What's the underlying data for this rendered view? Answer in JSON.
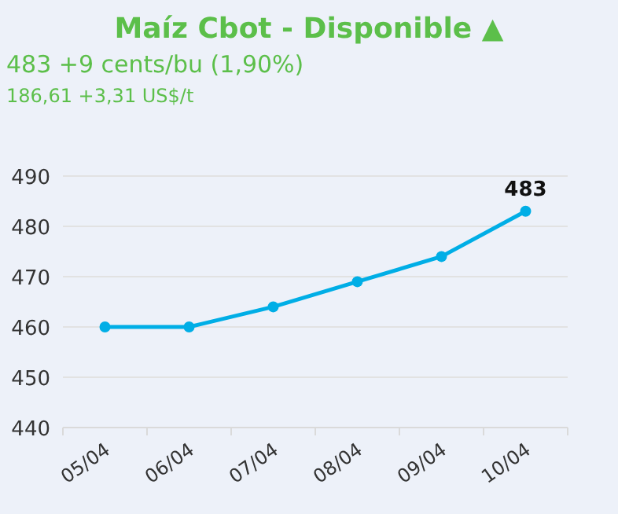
{
  "chart_data": {
    "type": "line",
    "title": "Maíz Cbot - Disponible ▲",
    "subtitle": "483 +9 cents/bu (1,90%)",
    "annotations": [
      "186,61 +3,31 US$/t",
      {
        "text": "483",
        "x": "10/04",
        "y": 483
      }
    ],
    "categories": [
      "05/04",
      "06/04",
      "07/04",
      "08/04",
      "09/04",
      "10/04"
    ],
    "series": [
      {
        "color": "#00aee6",
        "values": [
          460,
          460,
          464,
          469,
          474,
          483
        ]
      }
    ],
    "ylim": [
      440,
      490
    ],
    "yticks": [
      440,
      450,
      460,
      470,
      480,
      490
    ],
    "grid": "y",
    "marker": "circle",
    "line_style": "solid"
  }
}
